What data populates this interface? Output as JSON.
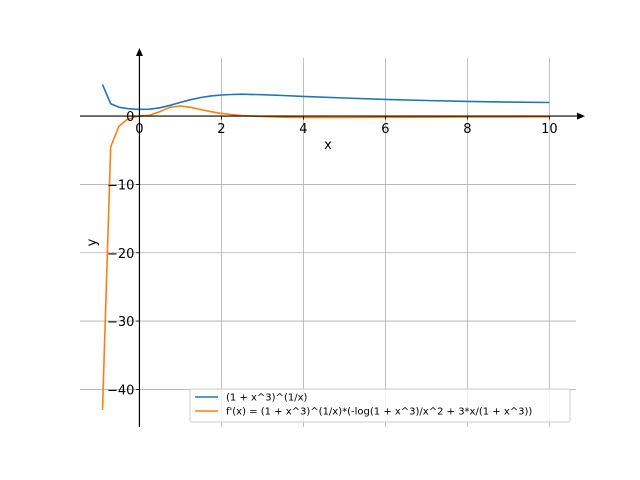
{
  "chart_data": {
    "type": "line",
    "title": "",
    "xlabel": "x",
    "ylabel": "y",
    "xlim": [
      -1.45,
      10.65
    ],
    "ylim": [
      -45.5,
      8.5
    ],
    "x_ticks": [
      0,
      2,
      4,
      6,
      8,
      10
    ],
    "x_tick_labels": [
      "0",
      "2",
      "4",
      "6",
      "8",
      "10"
    ],
    "y_ticks": [
      0,
      -10,
      -20,
      -30,
      -40
    ],
    "y_tick_labels": [
      "0",
      "−10",
      "−20",
      "−30",
      "−40"
    ],
    "grid": true,
    "legend_position": "lower right",
    "series": [
      {
        "name": "(1 + x^3)^(1/x)",
        "color": "#1f77b4",
        "x": [
          -0.9,
          -0.7,
          -0.5,
          -0.3,
          -0.1,
          0.0,
          0.25,
          0.5,
          0.75,
          1.0,
          1.25,
          1.5,
          1.75,
          2.0,
          2.25,
          2.5,
          3.0,
          3.5,
          4.0,
          5.0,
          6.0,
          7.0,
          8.0,
          9.0,
          10.0
        ],
        "y": [
          4.6,
          1.8,
          1.3,
          1.09,
          1.01,
          1.0,
          1.01,
          1.21,
          1.58,
          2.0,
          2.4,
          2.72,
          2.95,
          3.09,
          3.16,
          3.2,
          3.13,
          3.01,
          2.88,
          2.64,
          2.44,
          2.28,
          2.15,
          2.05,
          1.99
        ]
      },
      {
        "name": "f'(x) = (1 + x^3)^(1/x)*(-log(1 + x^3)/x^2 + 3*x/(1 + x^3))",
        "color": "#ff7f0e",
        "x": [
          -0.9,
          -0.7,
          -0.5,
          -0.3,
          -0.1,
          0.0,
          0.25,
          0.5,
          0.75,
          1.0,
          1.25,
          1.5,
          1.75,
          2.0,
          2.25,
          2.5,
          3.0,
          3.5,
          4.0,
          5.0,
          6.0,
          7.0,
          8.0,
          9.0,
          10.0
        ],
        "y": [
          -43.0,
          -4.5,
          -1.5,
          -0.5,
          -0.1,
          0.0,
          0.12,
          0.66,
          1.3,
          1.47,
          1.28,
          0.95,
          0.64,
          0.39,
          0.21,
          0.09,
          -0.06,
          -0.16,
          -0.19,
          -0.2,
          -0.18,
          -0.16,
          -0.14,
          -0.12,
          -0.1
        ]
      }
    ]
  }
}
